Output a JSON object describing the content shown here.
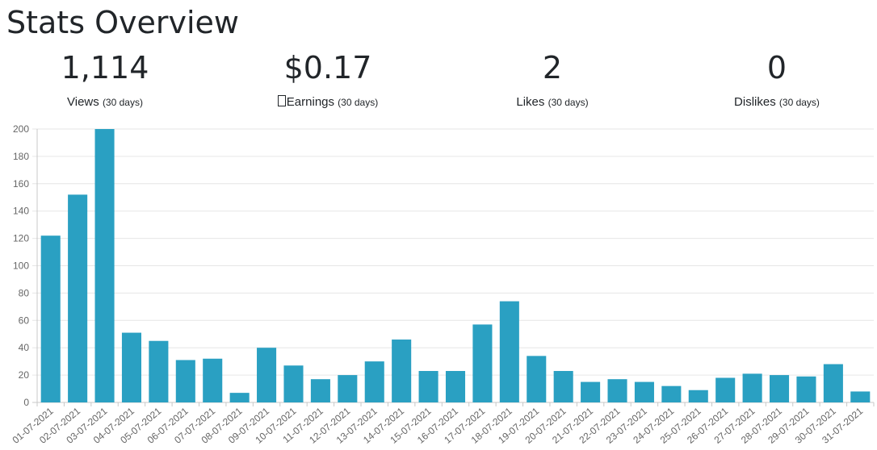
{
  "header": {
    "title": "Stats Overview"
  },
  "stats": [
    {
      "value": "1,114",
      "label": "Views",
      "period": "(30 days)"
    },
    {
      "value": "$0.17",
      "label": "Earnings",
      "period": "(30 days)"
    },
    {
      "value": "2",
      "label": "Likes",
      "period": "(30 days)"
    },
    {
      "value": "0",
      "label": "Dislikes",
      "period": "(30 days)"
    }
  ],
  "chart_data": {
    "type": "bar",
    "title": "",
    "xlabel": "",
    "ylabel": "",
    "ylim": [
      0,
      200
    ],
    "yticks": [
      0,
      20,
      40,
      60,
      80,
      100,
      120,
      140,
      160,
      180,
      200
    ],
    "grid": true,
    "bar_color": "#2aa0c2",
    "categories": [
      "01-07-2021",
      "02-07-2021",
      "03-07-2021",
      "04-07-2021",
      "05-07-2021",
      "06-07-2021",
      "07-07-2021",
      "08-07-2021",
      "09-07-2021",
      "10-07-2021",
      "11-07-2021",
      "12-07-2021",
      "13-07-2021",
      "14-07-2021",
      "15-07-2021",
      "16-07-2021",
      "17-07-2021",
      "18-07-2021",
      "19-07-2021",
      "20-07-2021",
      "21-07-2021",
      "22-07-2021",
      "23-07-2021",
      "24-07-2021",
      "25-07-2021",
      "26-07-2021",
      "27-07-2021",
      "28-07-2021",
      "29-07-2021",
      "30-07-2021",
      "31-07-2021"
    ],
    "values": [
      122,
      152,
      200,
      51,
      45,
      31,
      32,
      7,
      40,
      27,
      17,
      20,
      30,
      46,
      23,
      23,
      57,
      74,
      34,
      23,
      15,
      17,
      15,
      12,
      9,
      18,
      21,
      20,
      19,
      28,
      8
    ]
  }
}
